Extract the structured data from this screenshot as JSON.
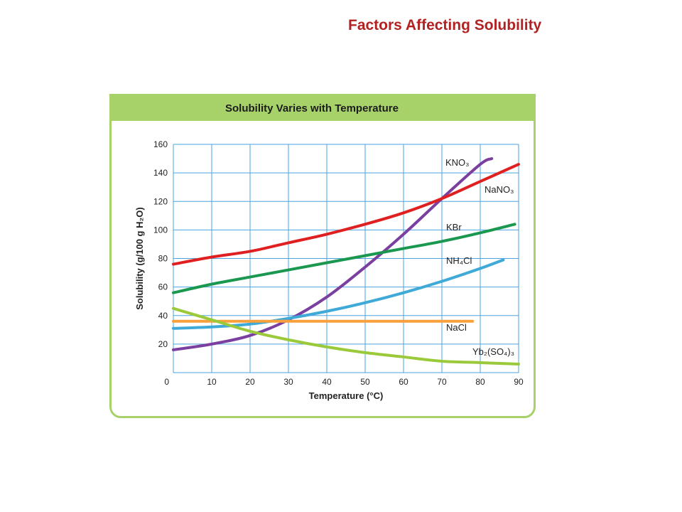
{
  "slide": {
    "title": "Factors Affecting Solubility"
  },
  "colors": {
    "accent_green": "#a7d26a",
    "title_red": "#b22222",
    "grid_blue": "#4aa3df"
  },
  "chart_data": {
    "type": "line",
    "title": "Solubility Varies with Temperature",
    "xlabel": "Temperature (°C)",
    "ylabel": "Solubility (g/100 g H₂O)",
    "xlim": [
      0,
      90
    ],
    "ylim": [
      0,
      160
    ],
    "xticks": [
      0,
      10,
      20,
      30,
      40,
      50,
      60,
      70,
      80,
      90
    ],
    "yticks": [
      0,
      20,
      40,
      60,
      80,
      100,
      120,
      140,
      160
    ],
    "grid": true,
    "series": [
      {
        "name": "KNO₃",
        "color": "#7b3fa0",
        "points": [
          [
            0,
            16
          ],
          [
            10,
            20
          ],
          [
            20,
            26
          ],
          [
            30,
            37
          ],
          [
            40,
            53
          ],
          [
            50,
            74
          ],
          [
            60,
            97
          ],
          [
            70,
            122
          ],
          [
            80,
            146
          ],
          [
            83,
            150
          ]
        ]
      },
      {
        "name": "NaNO₃",
        "color": "#e02020",
        "points": [
          [
            0,
            76
          ],
          [
            10,
            81
          ],
          [
            20,
            85
          ],
          [
            30,
            91
          ],
          [
            40,
            97
          ],
          [
            50,
            104
          ],
          [
            60,
            112
          ],
          [
            70,
            122
          ],
          [
            80,
            134
          ],
          [
            90,
            146
          ]
        ]
      },
      {
        "name": "KBr",
        "color": "#1a9850",
        "points": [
          [
            0,
            56
          ],
          [
            10,
            62
          ],
          [
            20,
            67
          ],
          [
            30,
            72
          ],
          [
            40,
            77
          ],
          [
            50,
            82
          ],
          [
            60,
            87
          ],
          [
            70,
            92
          ],
          [
            80,
            98
          ],
          [
            89,
            104
          ]
        ]
      },
      {
        "name": "NH₄Cl",
        "color": "#3fa9d8",
        "points": [
          [
            0,
            31
          ],
          [
            10,
            32
          ],
          [
            20,
            34
          ],
          [
            30,
            38
          ],
          [
            40,
            43
          ],
          [
            50,
            49
          ],
          [
            60,
            56
          ],
          [
            70,
            64
          ],
          [
            80,
            73
          ],
          [
            86,
            79
          ]
        ]
      },
      {
        "name": "NaCl",
        "color": "#f7a03c",
        "points": [
          [
            0,
            36
          ],
          [
            20,
            36
          ],
          [
            40,
            36
          ],
          [
            60,
            36
          ],
          [
            78,
            36
          ]
        ]
      },
      {
        "name": "Yb₂(SO₄)₃",
        "color": "#9ac93a",
        "points": [
          [
            0,
            45
          ],
          [
            10,
            37
          ],
          [
            20,
            29
          ],
          [
            30,
            23
          ],
          [
            40,
            18
          ],
          [
            50,
            14
          ],
          [
            60,
            11
          ],
          [
            70,
            8
          ],
          [
            80,
            7
          ],
          [
            90,
            6
          ]
        ]
      }
    ]
  }
}
